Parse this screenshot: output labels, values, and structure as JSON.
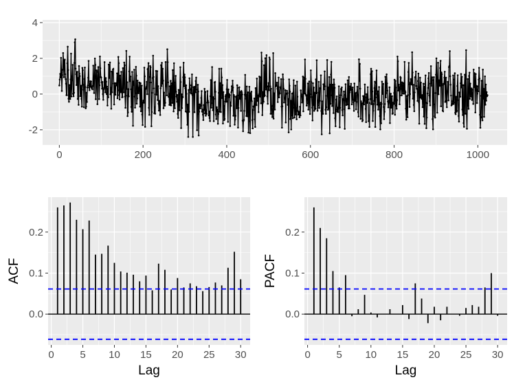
{
  "chart_data": [
    {
      "type": "line",
      "xlabel": "",
      "ylabel": "",
      "xlim": [
        -40,
        1070
      ],
      "ylim": [
        -2.85,
        4.15
      ],
      "xticks": [
        0,
        200,
        400,
        600,
        800,
        1000
      ],
      "yticks": [
        -2,
        0,
        2,
        4
      ],
      "n_points": 1024,
      "points_marked": true,
      "grid": true,
      "background": "#ebebeb",
      "line_color": "#000000"
    },
    {
      "type": "bar",
      "xlabel": "Lag",
      "ylabel": "ACF",
      "xlim": [
        -0.5,
        31.5
      ],
      "ylim": [
        -0.075,
        0.285
      ],
      "xticks": [
        0,
        5,
        10,
        15,
        20,
        25,
        30
      ],
      "yticks": [
        0.0,
        0.1,
        0.2
      ],
      "lags": [
        1,
        2,
        3,
        4,
        5,
        6,
        7,
        8,
        9,
        10,
        11,
        12,
        13,
        14,
        15,
        16,
        17,
        18,
        19,
        20,
        21,
        22,
        23,
        24,
        25,
        26,
        27,
        28,
        29,
        30
      ],
      "values": [
        0.26,
        0.265,
        0.272,
        0.23,
        0.207,
        0.228,
        0.145,
        0.147,
        0.167,
        0.125,
        0.104,
        0.101,
        0.096,
        0.08,
        0.094,
        0.058,
        0.123,
        0.108,
        0.06,
        0.088,
        0.065,
        0.075,
        0.068,
        0.056,
        0.066,
        0.077,
        0.07,
        0.113,
        0.152,
        0.085
      ],
      "confidence_bound": 0.0613,
      "bound_color": "#0000ff",
      "bar_color": "#000000"
    },
    {
      "type": "bar",
      "xlabel": "Lag",
      "ylabel": "PACF",
      "xlim": [
        -0.5,
        31.5
      ],
      "ylim": [
        -0.075,
        0.285
      ],
      "xticks": [
        0,
        5,
        10,
        15,
        20,
        25,
        30
      ],
      "yticks": [
        0.0,
        0.1,
        0.2
      ],
      "lags": [
        1,
        2,
        3,
        4,
        5,
        6,
        7,
        8,
        9,
        10,
        11,
        12,
        13,
        14,
        15,
        16,
        17,
        18,
        19,
        20,
        21,
        22,
        23,
        24,
        25,
        26,
        27,
        28,
        29,
        30
      ],
      "values": [
        0.26,
        0.21,
        0.185,
        0.105,
        0.065,
        0.095,
        -0.005,
        0.012,
        0.047,
        0.004,
        -0.008,
        0.0,
        0.012,
        0.0,
        0.022,
        -0.012,
        0.075,
        0.038,
        -0.022,
        0.018,
        -0.015,
        0.018,
        0.0,
        -0.004,
        0.015,
        0.022,
        0.018,
        0.065,
        0.1,
        -0.004
      ],
      "confidence_bound": 0.0613,
      "bound_color": "#0000ff",
      "bar_color": "#000000"
    }
  ]
}
